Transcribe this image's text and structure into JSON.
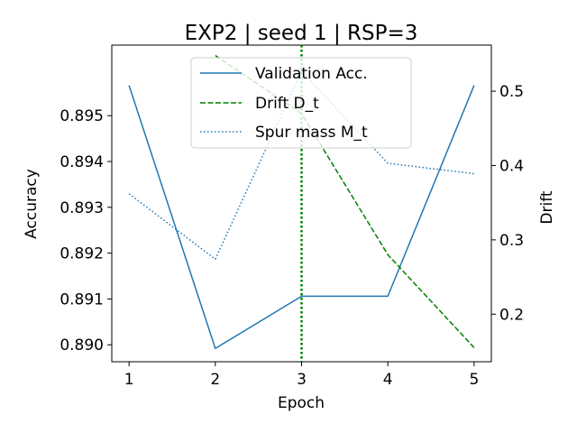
{
  "chart_data": {
    "type": "line",
    "title": "EXP2 | seed 1 | RSP=3",
    "xlabel": "Epoch",
    "ylabel_left": "Accuracy",
    "ylabel_right": "Drift",
    "x_ticks": [
      "1",
      "2",
      "3",
      "4",
      "5"
    ],
    "xlim": [
      0.8,
      5.2
    ],
    "y_left_lim": [
      0.88963,
      0.89654
    ],
    "y_right_lim": [
      0.136,
      0.562
    ],
    "y_left_ticks": [
      "0.890",
      "0.891",
      "0.892",
      "0.893",
      "0.894",
      "0.895"
    ],
    "y_right_ticks": [
      "0.2",
      "0.3",
      "0.4",
      "0.5"
    ],
    "marker_line": {
      "x": 3,
      "color": "#008000",
      "style": "dotted"
    },
    "legend": {
      "placement": "top-center"
    },
    "series": [
      {
        "name": "Validation Acc.",
        "axis": "left",
        "style": "solid",
        "color": "#1f77b4",
        "x": [
          1,
          2,
          3,
          4,
          5
        ],
        "values": [
          0.89566,
          0.88992,
          0.89106,
          0.89106,
          0.89566
        ]
      },
      {
        "name": "Drift D_t",
        "axis": "right",
        "style": "dashed",
        "color": "#008000",
        "x": [
          2,
          3,
          4,
          5
        ],
        "values": [
          0.548,
          0.47,
          0.28,
          0.155
        ]
      },
      {
        "name": "Spur mass M_t",
        "axis": "right",
        "style": "dotted",
        "color": "#1f77b4",
        "x": [
          1,
          2,
          3,
          4,
          5
        ],
        "values": [
          0.362,
          0.274,
          0.527,
          0.403,
          0.389
        ]
      }
    ]
  }
}
